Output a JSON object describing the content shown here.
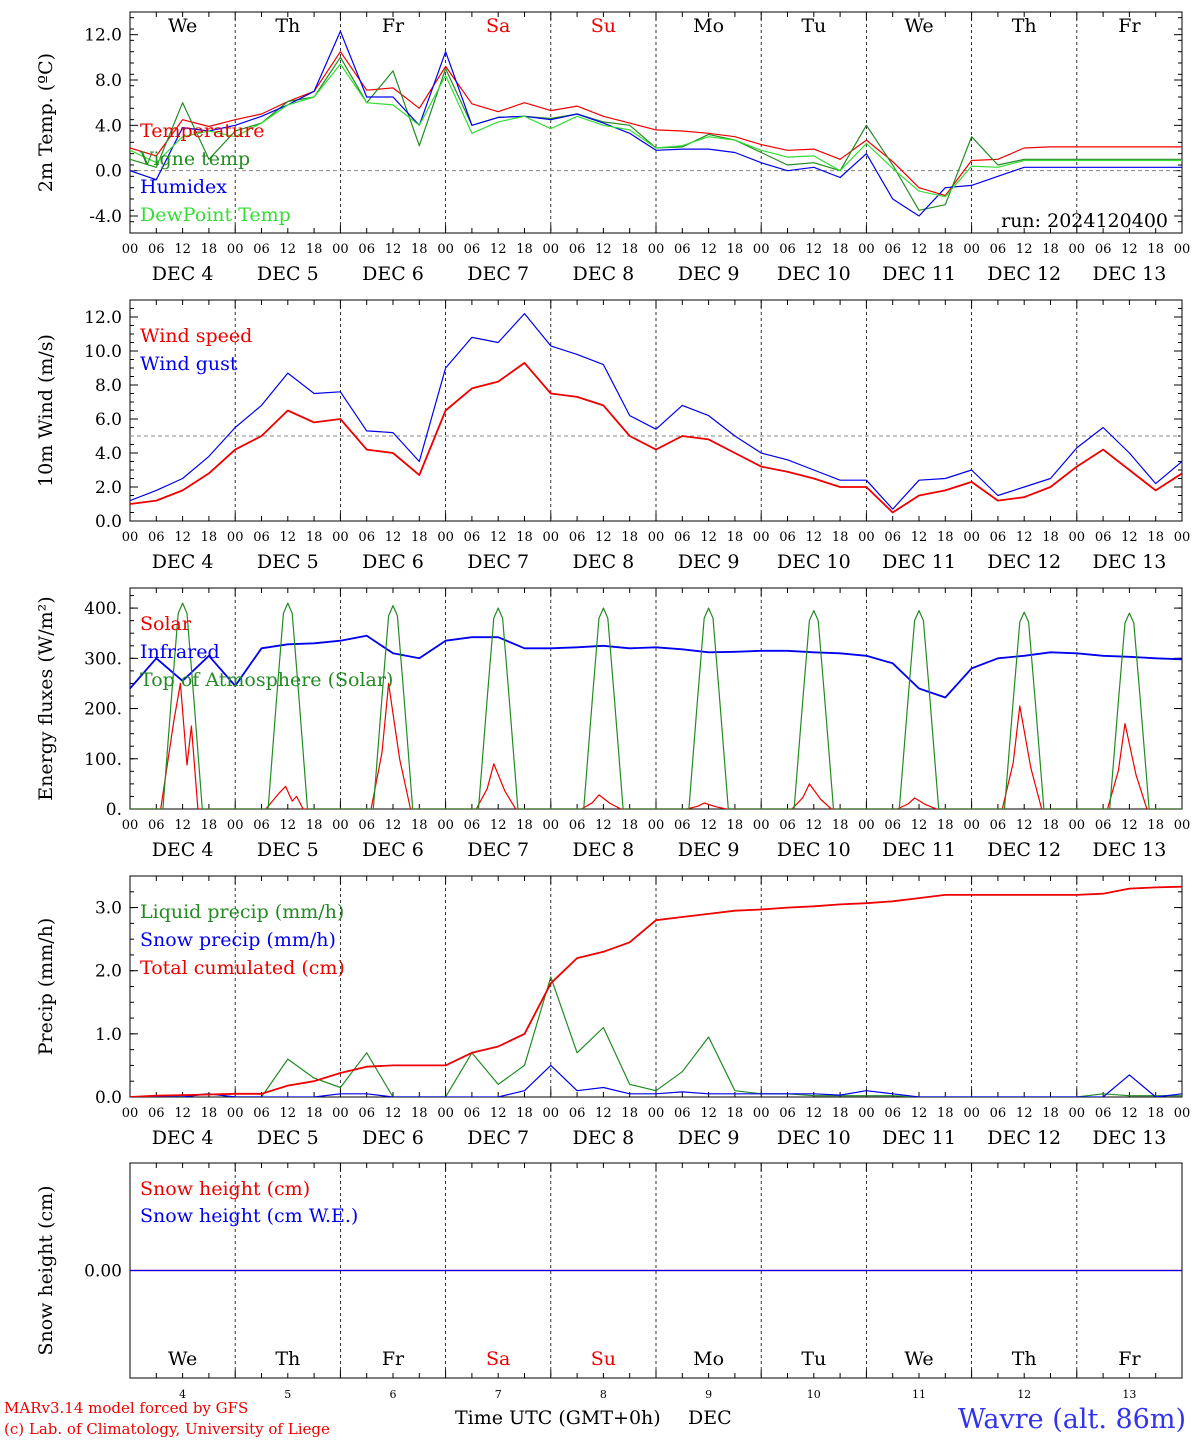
{
  "days": [
    "4",
    "5",
    "6",
    "7",
    "8",
    "9",
    "10",
    "11",
    "12",
    "13"
  ],
  "dec_labels": [
    "DEC  4",
    "DEC  5",
    "DEC  6",
    "DEC  7",
    "DEC  8",
    "DEC  9",
    "DEC 10",
    "DEC 11",
    "DEC 12",
    "DEC 13"
  ],
  "weekdays": [
    "We",
    "Th",
    "Fr",
    "Sa",
    "Su",
    "Mo",
    "Tu",
    "We",
    "Th",
    "Fr"
  ],
  "weekend_flags": [
    false,
    false,
    false,
    true,
    true,
    false,
    false,
    false,
    false,
    false
  ],
  "hour_ticks": [
    "00",
    "06",
    "12",
    "18"
  ],
  "final_hour": "00",
  "colors": {
    "red": "#ee0000",
    "darkgreen": "#228b22",
    "blue": "#0000ee",
    "lightgreen": "#33dd33",
    "grid": "#000000"
  },
  "footer": {
    "credit_line1": "MARv3.14 model forced by GFS",
    "credit_line2": "(c) Lab. of Climatology, University of Liege",
    "xlabel": "Time UTC (GMT+0h)",
    "month": "DEC",
    "station": "Wavre (alt. 86m)"
  },
  "chart_data": [
    {
      "type": "line",
      "ylabel": "2m Temp. (ºC)",
      "ylim": [
        -5.5,
        14
      ],
      "yticks": [
        "12.0",
        "8.0",
        "4.0",
        "0.0",
        "-4.0"
      ],
      "ytick_values": [
        12,
        8,
        4,
        0,
        -4
      ],
      "ref_line": 0,
      "annotation": "run: 2024120400",
      "x_hours": [
        0,
        6,
        12,
        18,
        24,
        30,
        36,
        42,
        48,
        54,
        60,
        66,
        72,
        78,
        84,
        90,
        96,
        102,
        108,
        114,
        120,
        126,
        132,
        138,
        144,
        150,
        156,
        162,
        168,
        174,
        180,
        186,
        192,
        198,
        204,
        210,
        216,
        222,
        228,
        234,
        240
      ],
      "series": [
        {
          "name": "Temperature",
          "color": "red",
          "values": [
            2.0,
            1.3,
            4.5,
            3.9,
            4.5,
            5.0,
            6.1,
            7.0,
            10.5,
            7.1,
            7.3,
            5.5,
            9.2,
            5.9,
            5.2,
            6.0,
            5.3,
            5.7,
            4.8,
            4.2,
            3.6,
            3.5,
            3.3,
            3.0,
            2.3,
            1.8,
            1.9,
            1.0,
            2.7,
            0.8,
            -1.5,
            -2.2,
            0.9,
            1.0,
            2.0,
            2.1,
            2.1,
            2.1,
            2.1,
            2.1,
            2.1
          ]
        },
        {
          "name": "Vigne temp",
          "color": "darkgreen",
          "values": [
            1.0,
            0.3,
            6.0,
            1.0,
            3.5,
            4.2,
            6.1,
            6.5,
            10.0,
            6.0,
            8.8,
            2.2,
            9.0,
            4.0,
            4.7,
            4.8,
            4.6,
            5.0,
            4.3,
            4.0,
            2.0,
            2.1,
            3.2,
            2.7,
            1.6,
            0.5,
            0.7,
            0.0,
            4.0,
            0.5,
            -3.5,
            -3.0,
            3.0,
            0.5,
            1.0,
            1.0,
            1.0,
            1.0,
            1.0,
            1.0,
            1.0
          ]
        },
        {
          "name": "Humidex",
          "color": "blue",
          "values": [
            0.0,
            -0.8,
            3.8,
            3.5,
            4.0,
            4.8,
            5.8,
            7.0,
            12.3,
            6.5,
            6.5,
            4.0,
            10.5,
            4.0,
            4.7,
            4.8,
            4.5,
            5.0,
            4.2,
            3.3,
            1.8,
            1.9,
            1.9,
            1.6,
            0.7,
            0.0,
            0.3,
            -0.6,
            1.5,
            -2.5,
            -4.0,
            -1.5,
            -1.3,
            -0.5,
            0.3,
            0.3,
            0.3,
            0.3,
            0.3,
            0.3,
            0.3
          ]
        },
        {
          "name": "DewPoint Temp",
          "color": "lightgreen",
          "values": [
            1.8,
            0.7,
            3.0,
            3.5,
            3.0,
            4.2,
            5.8,
            6.5,
            9.4,
            6.0,
            5.8,
            4.0,
            8.4,
            3.3,
            4.3,
            4.8,
            3.7,
            4.8,
            4.0,
            3.6,
            2.0,
            2.2,
            3.0,
            2.7,
            1.8,
            1.2,
            1.3,
            0.0,
            2.4,
            0.2,
            -1.8,
            -2.3,
            0.4,
            0.3,
            0.9,
            0.9,
            0.9,
            0.9,
            0.9,
            0.9,
            0.9
          ]
        }
      ]
    },
    {
      "type": "line",
      "ylabel": "10m Wind (m/s)",
      "ylim": [
        0,
        13
      ],
      "yticks": [
        "12.0",
        "10.0",
        "8.0",
        "6.0",
        "4.0",
        "2.0",
        "0.0"
      ],
      "ytick_values": [
        12,
        10,
        8,
        6,
        4,
        2,
        0
      ],
      "ref_line": 5,
      "x_hours": [
        0,
        6,
        12,
        18,
        24,
        30,
        36,
        42,
        48,
        54,
        60,
        66,
        72,
        78,
        84,
        90,
        96,
        102,
        108,
        114,
        120,
        126,
        132,
        138,
        144,
        150,
        156,
        162,
        168,
        174,
        180,
        186,
        192,
        198,
        204,
        210,
        216,
        222,
        228,
        234,
        240
      ],
      "series": [
        {
          "name": "Wind speed",
          "color": "red",
          "values": [
            1.0,
            1.2,
            1.8,
            2.8,
            4.2,
            5.0,
            6.5,
            5.8,
            6.0,
            4.2,
            4.0,
            2.7,
            6.5,
            7.8,
            8.2,
            9.3,
            7.5,
            7.3,
            6.8,
            5.0,
            4.2,
            5.0,
            4.8,
            4.0,
            3.2,
            2.9,
            2.5,
            2.0,
            2.0,
            0.5,
            1.5,
            1.8,
            2.3,
            1.2,
            1.4,
            2.0,
            3.2,
            4.2,
            3.0,
            1.8,
            2.8
          ]
        },
        {
          "name": "Wind gust",
          "color": "blue",
          "values": [
            1.2,
            1.8,
            2.5,
            3.8,
            5.5,
            6.8,
            8.7,
            7.5,
            7.6,
            5.3,
            5.2,
            3.5,
            9.0,
            10.8,
            10.5,
            12.2,
            10.3,
            9.8,
            9.2,
            6.2,
            5.4,
            6.8,
            6.2,
            5.0,
            4.0,
            3.6,
            3.0,
            2.4,
            2.4,
            0.7,
            2.4,
            2.5,
            3.0,
            1.5,
            2.0,
            2.5,
            4.3,
            5.5,
            4.0,
            2.2,
            3.5
          ]
        }
      ]
    },
    {
      "type": "line",
      "ylabel": "Energy fluxes (W/m²)",
      "ylim": [
        0,
        440
      ],
      "yticks": [
        "400.",
        "300.",
        "200.",
        "100.",
        "0."
      ],
      "ytick_values": [
        400,
        300,
        200,
        100,
        0
      ],
      "x_hours": [
        0,
        6,
        12,
        18,
        24,
        30,
        36,
        42,
        48,
        54,
        60,
        66,
        72,
        78,
        84,
        90,
        96,
        102,
        108,
        114,
        120,
        126,
        132,
        138,
        144,
        150,
        156,
        162,
        168,
        174,
        180,
        186,
        192,
        198,
        204,
        210,
        216,
        222,
        228,
        234,
        240
      ],
      "series": [
        {
          "name": "Solar",
          "color": "red",
          "peaks": [
            {
              "day": 0,
              "value": 250,
              "shape": "double",
              "second": 165
            },
            {
              "day": 1,
              "value": 45,
              "shape": "double",
              "second": 25
            },
            {
              "day": 2,
              "value": 250
            },
            {
              "day": 3,
              "value": 90
            },
            {
              "day": 4,
              "value": 28
            },
            {
              "day": 5,
              "value": 12
            },
            {
              "day": 6,
              "value": 50
            },
            {
              "day": 7,
              "value": 22
            },
            {
              "day": 8,
              "value": 205
            },
            {
              "day": 9,
              "value": 170
            }
          ]
        },
        {
          "name": "Infrared",
          "color": "blue",
          "values": [
            240,
            300,
            255,
            305,
            245,
            320,
            328,
            330,
            335,
            345,
            310,
            300,
            335,
            342,
            342,
            320,
            320,
            322,
            325,
            320,
            322,
            318,
            312,
            313,
            315,
            315,
            312,
            310,
            305,
            290,
            240,
            222,
            280,
            300,
            305,
            312,
            310,
            305,
            303,
            300,
            298
          ]
        },
        {
          "name": "Top of Atmosphere (Solar)",
          "color": "darkgreen",
          "daily_peak": [
            410,
            410,
            405,
            400,
            400,
            400,
            395,
            395,
            392,
            390
          ]
        }
      ]
    },
    {
      "type": "line",
      "ylabel": "Precip (mm/h)",
      "ylim": [
        0,
        3.5
      ],
      "yticks": [
        "3.0",
        "2.0",
        "1.0",
        "0.0"
      ],
      "ytick_values": [
        3,
        2,
        1,
        0
      ],
      "x_hours": [
        0,
        6,
        12,
        18,
        24,
        30,
        36,
        42,
        48,
        54,
        60,
        66,
        72,
        78,
        84,
        90,
        96,
        102,
        108,
        114,
        120,
        126,
        132,
        138,
        144,
        150,
        156,
        162,
        168,
        174,
        180,
        186,
        192,
        198,
        204,
        210,
        216,
        222,
        228,
        234,
        240
      ],
      "series": [
        {
          "name": "Liquid precip (mm/h)",
          "color": "darkgreen",
          "values": [
            0,
            0,
            0.02,
            0.05,
            0,
            0,
            0.6,
            0.3,
            0.15,
            0.7,
            0,
            0,
            0,
            0.7,
            0.2,
            0.5,
            1.9,
            0.7,
            1.1,
            0.2,
            0.1,
            0.4,
            0.95,
            0.1,
            0.05,
            0.05,
            0.02,
            0.02,
            0.02,
            0.02,
            0,
            0,
            0,
            0,
            0,
            0,
            0,
            0.05,
            0.02,
            0.02,
            0.02
          ]
        },
        {
          "name": "Snow precip (mm/h)",
          "color": "blue",
          "values": [
            0,
            0,
            0,
            0.05,
            0,
            0,
            0,
            0,
            0.05,
            0.05,
            0,
            0,
            0,
            0,
            0,
            0.1,
            0.5,
            0.1,
            0.15,
            0.05,
            0.05,
            0.08,
            0.05,
            0.05,
            0.05,
            0.05,
            0.05,
            0.03,
            0.1,
            0.05,
            0,
            0,
            0,
            0,
            0,
            0,
            0,
            0,
            0.35,
            0,
            0.05
          ]
        },
        {
          "name": "Total cumulated (cm)",
          "color": "red",
          "values": [
            0,
            0.02,
            0.03,
            0.04,
            0.05,
            0.05,
            0.18,
            0.25,
            0.38,
            0.48,
            0.5,
            0.5,
            0.5,
            0.7,
            0.8,
            1.0,
            1.8,
            2.2,
            2.3,
            2.45,
            2.8,
            2.85,
            2.9,
            2.95,
            2.97,
            3.0,
            3.02,
            3.05,
            3.07,
            3.1,
            3.15,
            3.2,
            3.2,
            3.2,
            3.2,
            3.2,
            3.2,
            3.22,
            3.3,
            3.32,
            3.33
          ]
        }
      ]
    },
    {
      "type": "line",
      "ylabel": "Snow height (cm)",
      "ylim": [
        -1,
        1
      ],
      "yticks": [
        "0.00"
      ],
      "ytick_values": [
        0
      ],
      "x_hours": [
        0,
        240
      ],
      "series": [
        {
          "name": "Snow height (cm)",
          "color": "red",
          "values": [
            0,
            0
          ]
        },
        {
          "name": "Snow height (cm W.E.)",
          "color": "blue",
          "values": [
            0,
            0
          ]
        }
      ]
    }
  ]
}
